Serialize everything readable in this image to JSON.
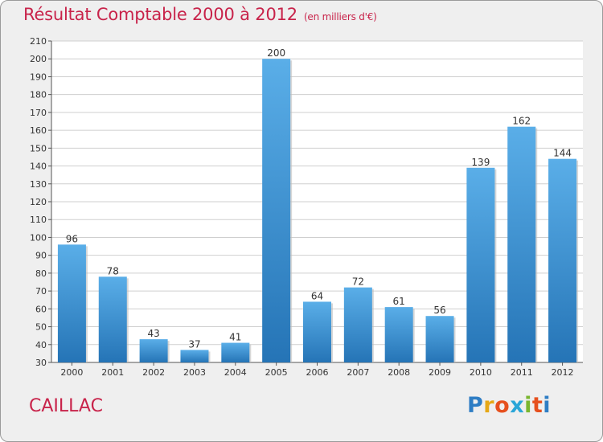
{
  "title": {
    "main": "Résultat Comptable 2000 à 2012",
    "unit": "(en milliers d'€)"
  },
  "location": "CAILLAC",
  "logo": {
    "letters": [
      "P",
      "r",
      "o",
      "x",
      "i",
      "t",
      "i"
    ],
    "colors": [
      "#2e7dc4",
      "#e6a817",
      "#e6501e",
      "#2aa6d8",
      "#7ab630",
      "#e6501e",
      "#2e7dc4"
    ]
  },
  "colors": {
    "title": "#c8234a",
    "bar_light": "#5aaee8",
    "bar_dark": "#2574b6",
    "grid": "#cfcfcf"
  },
  "chart_data": {
    "type": "bar",
    "title": "Résultat Comptable 2000 à 2012 (en milliers d'€)",
    "xlabel": "",
    "ylabel": "",
    "categories": [
      "2000",
      "2001",
      "2002",
      "2003",
      "2004",
      "2005",
      "2006",
      "2007",
      "2008",
      "2009",
      "2010",
      "2011",
      "2012"
    ],
    "values": [
      96,
      78,
      43,
      37,
      41,
      200,
      64,
      72,
      61,
      56,
      139,
      162,
      144
    ],
    "ylim": [
      30,
      210
    ],
    "yticks": [
      30,
      40,
      50,
      60,
      70,
      80,
      90,
      100,
      110,
      120,
      130,
      140,
      150,
      160,
      170,
      180,
      190,
      200,
      210
    ],
    "grid": true,
    "data_labels": [
      "96",
      "78",
      "43",
      "37",
      "41",
      "200",
      "64",
      "72",
      "61",
      "56",
      "139",
      "162",
      "144"
    ]
  }
}
